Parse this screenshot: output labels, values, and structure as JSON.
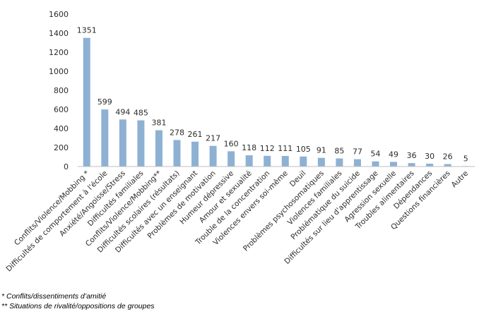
{
  "chart_data": {
    "type": "bar",
    "categories": [
      "Conflits/Violence/Mobbing *",
      "Difficultés de comportement à l'école",
      "Anxiété/Angoisse/Stress",
      "Difficultés familiales",
      "Conflits/Violence/Mobbing**",
      "Difficultés scolaires (résultats)",
      "Difficultés avec un enseignant",
      "Problèmes de motivation",
      "Humeur dépressive",
      "Amour et sexualité",
      "Trouble de la concentration",
      "Violences envers soi-même",
      "Deuil",
      "Problèmes psychosomatiques",
      "Violences familiales",
      "Problématique du suicide",
      "Difficultés sur lieu d'apprentissage",
      "Agression sexuelle",
      "Troubles alimentaires",
      "Dépendances",
      "Questions financières",
      "Autre"
    ],
    "values": [
      1351,
      599,
      494,
      485,
      381,
      278,
      261,
      217,
      160,
      118,
      112,
      111,
      105,
      91,
      85,
      77,
      54,
      49,
      36,
      30,
      26,
      5
    ],
    "ylim": [
      0,
      1600
    ],
    "yticks": [
      0,
      200,
      400,
      600,
      800,
      1000,
      1200,
      1400,
      1600
    ],
    "bar_color": "#8eb1d3",
    "grid": false,
    "title": "",
    "xlabel": "",
    "ylabel": ""
  },
  "footnotes": [
    "*  Conflits/dissentiments d’amitié",
    "** Situations de rivalité/oppositions de groupes"
  ]
}
